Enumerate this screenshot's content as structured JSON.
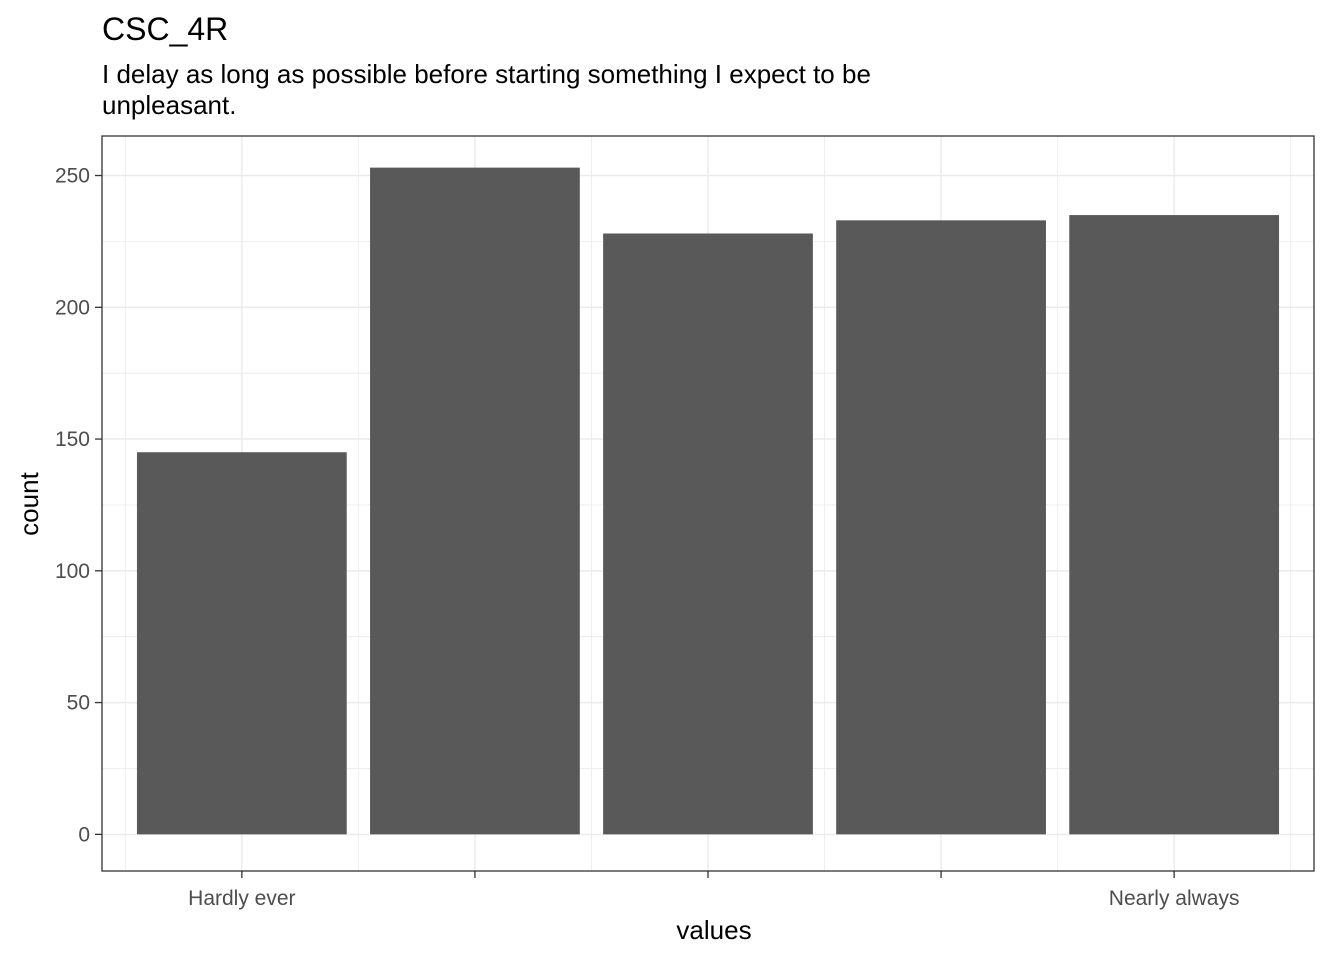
{
  "chart_data": {
    "type": "bar",
    "title": "CSC_4R",
    "subtitle_lines": [
      "I delay as long as possible before starting something I expect to be",
      "unpleasant."
    ],
    "xlabel": "values",
    "ylabel": "count",
    "categories": [
      "Hardly ever",
      "",
      "",
      "",
      "Nearly always"
    ],
    "values": [
      145,
      253,
      228,
      233,
      235
    ],
    "ylim": [
      0,
      265
    ],
    "yticks": [
      0,
      50,
      100,
      150,
      200,
      250
    ],
    "grid": true,
    "bar_color": "#595959",
    "grid_color": "#ebebeb"
  }
}
